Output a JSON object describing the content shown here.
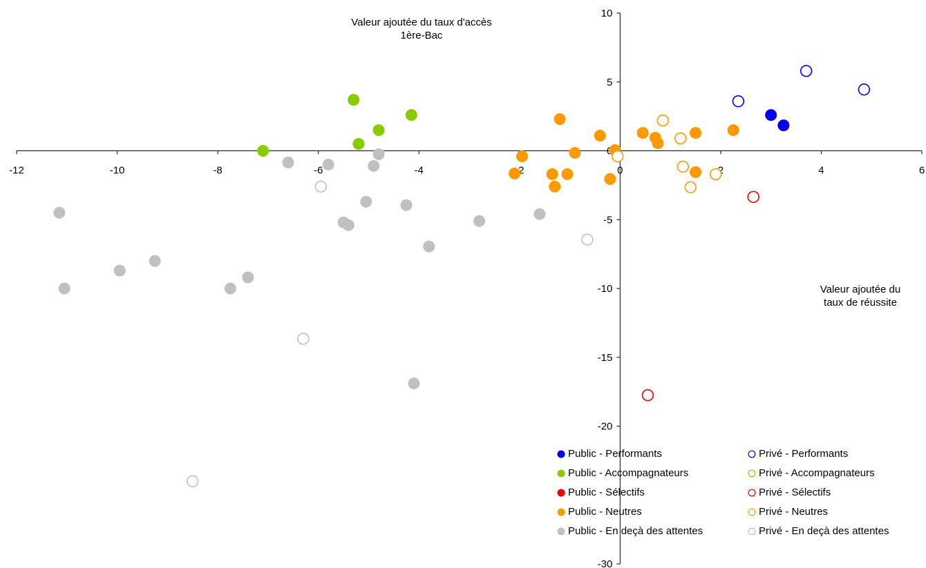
{
  "chart_data": {
    "type": "scatter",
    "x_label_lines": [
      "Valeur ajoutée du",
      "taux de réussite"
    ],
    "y_label_lines": [
      "Valeur ajoutée du taux d'accès",
      "1ère-Bac"
    ],
    "xlim": [
      -12,
      6
    ],
    "ylim": [
      -30,
      10
    ],
    "x_ticks": [
      -12,
      -10,
      -8,
      -6,
      -4,
      -2,
      0,
      2,
      4,
      6
    ],
    "y_ticks": [
      10,
      5,
      0,
      -5,
      -10,
      -15,
      -20,
      -30
    ],
    "series": [
      {
        "name": "Public - Performants",
        "color": "#0000ee",
        "filled": true,
        "points": [
          [
            3.0,
            2.6
          ],
          [
            3.25,
            1.85
          ]
        ]
      },
      {
        "name": "Privé - Performants",
        "color": "#0000ee",
        "filled": false,
        "points": [
          [
            2.35,
            3.6
          ],
          [
            3.7,
            5.8
          ],
          [
            4.85,
            4.45
          ]
        ]
      },
      {
        "name": "Public - Accompagnateurs",
        "color": "#88cc00",
        "filled": true,
        "points": [
          [
            -7.1,
            0.0
          ],
          [
            -5.3,
            3.7
          ],
          [
            -4.8,
            1.5
          ],
          [
            -5.2,
            0.5
          ],
          [
            -4.15,
            2.6
          ]
        ]
      },
      {
        "name": "Privé - Accompagnateurs",
        "color": "#88cc00",
        "filled": false,
        "points": []
      },
      {
        "name": "Public - Sélectifs",
        "color": "#ee0000",
        "filled": true,
        "points": []
      },
      {
        "name": "Privé - Sélectifs",
        "color": "#ee0000",
        "filled": false,
        "points": [
          [
            2.65,
            -3.35
          ],
          [
            0.55,
            -17.75
          ]
        ]
      },
      {
        "name": "Public - Neutres",
        "color": "#ff9900",
        "filled": true,
        "points": [
          [
            -1.2,
            2.3
          ],
          [
            -0.4,
            1.1
          ],
          [
            -0.9,
            -0.15
          ],
          [
            -0.1,
            0.05
          ],
          [
            0.45,
            1.3
          ],
          [
            0.7,
            0.95
          ],
          [
            0.75,
            0.55
          ],
          [
            1.5,
            1.3
          ],
          [
            2.25,
            1.5
          ],
          [
            -1.95,
            -0.4
          ],
          [
            -2.1,
            -1.65
          ],
          [
            -1.35,
            -1.7
          ],
          [
            -1.05,
            -1.7
          ],
          [
            -1.3,
            -2.6
          ],
          [
            -0.2,
            -2.05
          ],
          [
            1.5,
            -1.55
          ]
        ]
      },
      {
        "name": "Privé - Neutres",
        "color": "#ff9900",
        "filled": false,
        "points": [
          [
            0.85,
            2.2
          ],
          [
            1.2,
            0.9
          ],
          [
            -0.05,
            -0.4
          ],
          [
            1.25,
            -1.15
          ],
          [
            1.4,
            -2.65
          ],
          [
            1.9,
            -1.7
          ]
        ]
      },
      {
        "name": "Public - En deçà des attentes",
        "color": "#c0c0c0",
        "filled": true,
        "points": [
          [
            -6.6,
            -0.85
          ],
          [
            -5.8,
            -1.0
          ],
          [
            -4.8,
            -0.25
          ],
          [
            -4.9,
            -1.1
          ],
          [
            -5.05,
            -3.7
          ],
          [
            -4.25,
            -3.95
          ],
          [
            -5.5,
            -5.2
          ],
          [
            -5.4,
            -5.4
          ],
          [
            -3.8,
            -6.95
          ],
          [
            -2.8,
            -5.1
          ],
          [
            -1.6,
            -4.6
          ],
          [
            -11.15,
            -4.5
          ],
          [
            -9.95,
            -8.7
          ],
          [
            -9.25,
            -8.0
          ],
          [
            -11.05,
            -10.0
          ],
          [
            -7.75,
            -10.0
          ],
          [
            -7.4,
            -9.2
          ],
          [
            -4.1,
            -16.9
          ]
        ]
      },
      {
        "name": "Privé - En deçà des attentes",
        "color": "#c0c0c0",
        "filled": false,
        "points": [
          [
            -5.95,
            -2.6
          ],
          [
            -0.65,
            -6.45
          ],
          [
            -6.3,
            -13.65
          ],
          [
            -8.5,
            -24.0
          ]
        ]
      }
    ],
    "legend_position": "bottom-right"
  }
}
